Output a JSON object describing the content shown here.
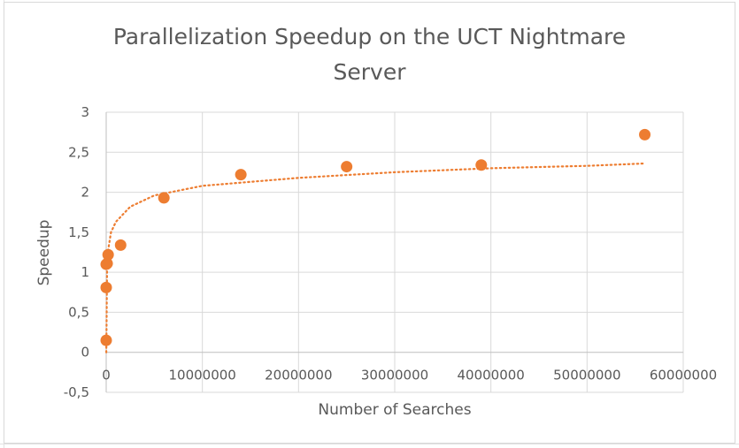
{
  "chart_data": {
    "type": "scatter",
    "title_line1": "Parallelization Speedup on the UCT Nightmare",
    "title_line2": "Server",
    "xlabel": "Number of Searches",
    "ylabel": "Speedup",
    "xlim": [
      0,
      60000000
    ],
    "ylim": [
      -0.5,
      3
    ],
    "x_ticks": [
      0,
      10000000,
      20000000,
      30000000,
      40000000,
      50000000,
      60000000
    ],
    "x_tick_labels": [
      "0",
      "10000000",
      "20000000",
      "30000000",
      "40000000",
      "50000000",
      "60000000"
    ],
    "y_ticks": [
      -0.5,
      0,
      0.5,
      1,
      1.5,
      2,
      2.5,
      3
    ],
    "y_tick_labels": [
      "-0,5",
      "0",
      "0,5",
      "1",
      "1,5",
      "2",
      "2,5",
      "3"
    ],
    "grid": true,
    "series": [
      {
        "color": "#ED7D31",
        "x": [
          0,
          0,
          0,
          100000,
          200000,
          1500000,
          6000000,
          14000000,
          25000000,
          39000000,
          56000000
        ],
        "y": [
          0.15,
          0.81,
          1.1,
          1.11,
          1.22,
          1.34,
          1.93,
          2.22,
          2.32,
          2.34,
          2.72
        ]
      }
    ],
    "trendline": {
      "type": "logarithmic",
      "style": "dotted",
      "color": "#ED7D31",
      "x": [
        10000,
        100000,
        500000,
        1000000,
        2500000,
        5000000,
        10000000,
        20000000,
        30000000,
        40000000,
        50000000,
        56000000
      ],
      "y": [
        0.0,
        1.2,
        1.5,
        1.63,
        1.82,
        1.96,
        2.08,
        2.18,
        2.25,
        2.3,
        2.33,
        2.36
      ]
    }
  }
}
